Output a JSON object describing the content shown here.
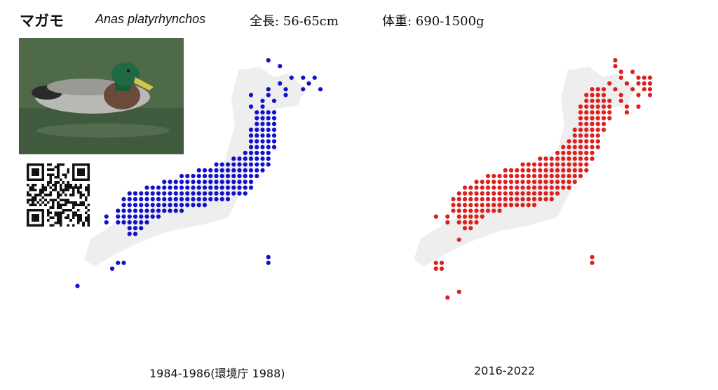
{
  "species": {
    "name_jp": "マガモ",
    "name_sci": "Anas platyrhynchos",
    "length": "全長: 56-65cm",
    "weight": "体重: 690-1500g"
  },
  "colors": {
    "period1": "#1111cc",
    "period2": "#dd1f1f",
    "land": "#eeeeee"
  },
  "photo": {
    "subject": "mallard-drake-photo"
  },
  "maps": [
    {
      "caption": "1984-1986(環境庁 1988)",
      "color_key": "period1"
    },
    {
      "caption": "2016-2022",
      "color_key": "period2"
    }
  ]
}
